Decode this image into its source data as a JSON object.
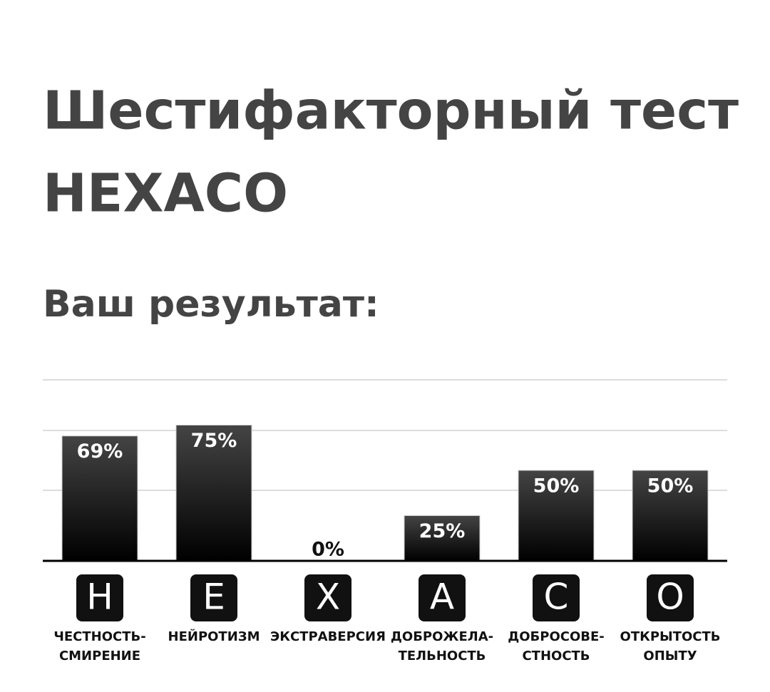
{
  "chart_data": {
    "type": "bar",
    "title": [
      "Шестифакторный тест",
      "HEXACO"
    ],
    "subtitle": "Ваш результат:",
    "letters": [
      "H",
      "E",
      "X",
      "A",
      "C",
      "O"
    ],
    "categories": [
      [
        "ЧЕСТНОСТЬ-",
        "СМИРЕНИЕ"
      ],
      [
        "НЕЙРОТИЗМ"
      ],
      [
        "ЭКСТРАВЕРСИЯ"
      ],
      [
        "ДОБРОЖЕЛА-",
        "ТЕЛЬНОСТЬ"
      ],
      [
        "ДОБРОСОВЕ-",
        "СТНОСТЬ"
      ],
      [
        "ОТКРЫТОСТЬ",
        "ОПЫТУ"
      ]
    ],
    "values": [
      69,
      75,
      0,
      25,
      50,
      50
    ],
    "value_labels": [
      "69%",
      "75%",
      "0%",
      "25%",
      "50%",
      "50%"
    ],
    "ylim": [
      0,
      100
    ]
  }
}
